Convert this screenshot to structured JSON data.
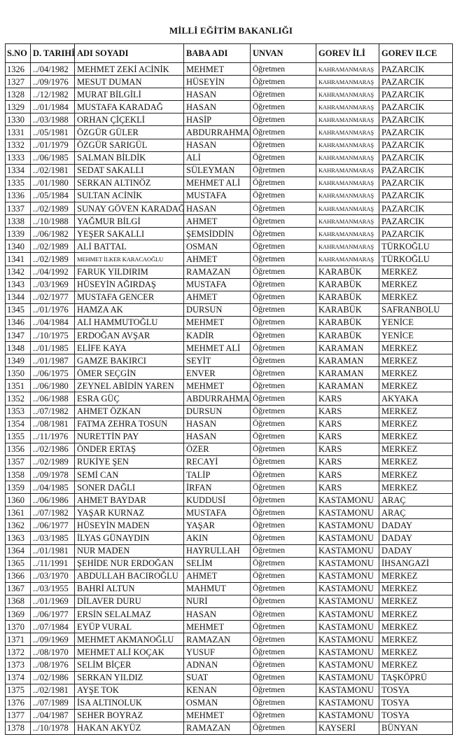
{
  "title": "MİLLİ EĞİTİM BAKANLIĞI",
  "columns": [
    "S.NO",
    "D. TARIHİ",
    "ADI SOYADI",
    "BABA ADI",
    "UNVAN",
    "GOREV İLİ",
    "GOREV ILCE"
  ],
  "rows": [
    [
      "1326",
      "../04/1982",
      "MEHMET ZEKİ ACİNİK",
      "MEHMET",
      "Öğretmen",
      "KAHRAMANMARAŞ",
      "PAZARCIK"
    ],
    [
      "1327",
      "../09/1976",
      "MESUT DUMAN",
      "HÜSEYİN",
      "Öğretmen",
      "KAHRAMANMARAŞ",
      "PAZARCIK"
    ],
    [
      "1328",
      "../12/1982",
      "MURAT BİLGİLİ",
      "HASAN",
      "Öğretmen",
      "KAHRAMANMARAŞ",
      "PAZARCIK"
    ],
    [
      "1329",
      "../01/1984",
      "MUSTAFA KARADAĞ",
      "HASAN",
      "Öğretmen",
      "KAHRAMANMARAŞ",
      "PAZARCIK"
    ],
    [
      "1330",
      "../03/1988",
      "ORHAN ÇİÇEKLİ",
      "HASİP",
      "Öğretmen",
      "KAHRAMANMARAŞ",
      "PAZARCIK"
    ],
    [
      "1331",
      "../05/1981",
      "ÖZGÜR GÜLER",
      "ABDURRAHMAN",
      "Öğretmen",
      "KAHRAMANMARAŞ",
      "PAZARCIK"
    ],
    [
      "1332",
      "../01/1979",
      "ÖZGÜR SARIGÜL",
      "HASAN",
      "Öğretmen",
      "KAHRAMANMARAŞ",
      "PAZARCIK"
    ],
    [
      "1333",
      "../06/1985",
      "SALMAN BİLDİK",
      "ALİ",
      "Öğretmen",
      "KAHRAMANMARAŞ",
      "PAZARCIK"
    ],
    [
      "1334",
      "../02/1981",
      "SEDAT SAKALLI",
      "SÜLEYMAN",
      "Öğretmen",
      "KAHRAMANMARAŞ",
      "PAZARCIK"
    ],
    [
      "1335",
      "../01/1980",
      "SERKAN ALTINÖZ",
      "MEHMET ALİ",
      "Öğretmen",
      "KAHRAMANMARAŞ",
      "PAZARCIK"
    ],
    [
      "1336",
      "../05/1984",
      "SULTAN ACİNİK",
      "MUSTAFA",
      "Öğretmen",
      "KAHRAMANMARAŞ",
      "PAZARCIK"
    ],
    [
      "1337",
      "../02/1989",
      "SUNAY GÖVEN KARADAĞ",
      "HASAN",
      "Öğretmen",
      "KAHRAMANMARAŞ",
      "PAZARCIK"
    ],
    [
      "1338",
      "../10/1988",
      "YAĞMUR BİLGİ",
      "AHMET",
      "Öğretmen",
      "KAHRAMANMARAŞ",
      "PAZARCIK"
    ],
    [
      "1339",
      "../06/1982",
      "YEŞER SAKALLI",
      "ŞEMSİDDİN",
      "Öğretmen",
      "KAHRAMANMARAŞ",
      "PAZARCIK"
    ],
    [
      "1340",
      "../02/1989",
      "ALİ BATTAL",
      "OSMAN",
      "Öğretmen",
      "KAHRAMANMARAŞ",
      "TÜRKOĞLU"
    ],
    [
      "1341",
      "../02/1989",
      "MEHMET İLKER KARACAOĞLU",
      "AHMET",
      "Öğretmen",
      "KAHRAMANMARAŞ",
      "TÜRKOĞLU"
    ],
    [
      "1342",
      "../04/1992",
      "FARUK YILDIRIM",
      "RAMAZAN",
      "Öğretmen",
      "KARABÜK",
      "MERKEZ"
    ],
    [
      "1343",
      "../03/1969",
      "HÜSEYİN AĞIRDAŞ",
      "MUSTAFA",
      "Öğretmen",
      "KARABÜK",
      "MERKEZ"
    ],
    [
      "1344",
      "../02/1977",
      "MUSTAFA GENCER",
      "AHMET",
      "Öğretmen",
      "KARABÜK",
      "MERKEZ"
    ],
    [
      "1345",
      "../01/1976",
      "HAMZA AK",
      "DURSUN",
      "Öğretmen",
      "KARABÜK",
      "SAFRANBOLU"
    ],
    [
      "1346",
      "../04/1984",
      "ALİ HAMMUTOĞLU",
      "MEHMET",
      "Öğretmen",
      "KARABÜK",
      "YENİCE"
    ],
    [
      "1347",
      "../10/1975",
      "ERDOĞAN AVŞAR",
      "KADİR",
      "Öğretmen",
      "KARABÜK",
      "YENİCE"
    ],
    [
      "1348",
      "../01/1985",
      "ELİFE KAYA",
      "MEHMET ALİ",
      "Öğretmen",
      "KARAMAN",
      "MERKEZ"
    ],
    [
      "1349",
      "../01/1987",
      "GAMZE BAKIRCI",
      "SEYİT",
      "Öğretmen",
      "KARAMAN",
      "MERKEZ"
    ],
    [
      "1350",
      "../06/1975",
      "ÖMER SEÇGİN",
      "ENVER",
      "Öğretmen",
      "KARAMAN",
      "MERKEZ"
    ],
    [
      "1351",
      "../06/1980",
      "ZEYNEL ABİDİN YAREN",
      "MEHMET",
      "Öğretmen",
      "KARAMAN",
      "MERKEZ"
    ],
    [
      "1352",
      "../06/1988",
      "ESRA GÜÇ",
      "ABDURRAHMAN",
      "Öğretmen",
      "KARS",
      "AKYAKA"
    ],
    [
      "1353",
      "../07/1982",
      "AHMET ÖZKAN",
      "DURSUN",
      "Öğretmen",
      "KARS",
      "MERKEZ"
    ],
    [
      "1354",
      "../08/1981",
      "FATMA ZEHRA TOSUN",
      "HASAN",
      "Öğretmen",
      "KARS",
      "MERKEZ"
    ],
    [
      "1355",
      "../11/1976",
      "NURETTİN PAY",
      "HASAN",
      "Öğretmen",
      "KARS",
      "MERKEZ"
    ],
    [
      "1356",
      "../02/1986",
      "ÖNDER ERTAŞ",
      "ÖZER",
      "Öğretmen",
      "KARS",
      "MERKEZ"
    ],
    [
      "1357",
      "../02/1989",
      "RUKİYE ŞEN",
      "RECAYİ",
      "Öğretmen",
      "KARS",
      "MERKEZ"
    ],
    [
      "1358",
      "../09/1978",
      "SEMİ CAN",
      "TALİP",
      "Öğretmen",
      "KARS",
      "MERKEZ"
    ],
    [
      "1359",
      "../04/1985",
      "SONER DAĞLI",
      "İRFAN",
      "Öğretmen",
      "KARS",
      "MERKEZ"
    ],
    [
      "1360",
      "../06/1986",
      "AHMET BAYDAR",
      "KUDDUSİ",
      "Öğretmen",
      "KASTAMONU",
      "ARAÇ"
    ],
    [
      "1361",
      "../07/1982",
      "YAŞAR KURNAZ",
      "MUSTAFA",
      "Öğretmen",
      "KASTAMONU",
      "ARAÇ"
    ],
    [
      "1362",
      "../06/1977",
      "HÜSEYİN MADEN",
      "YAŞAR",
      "Öğretmen",
      "KASTAMONU",
      "DADAY"
    ],
    [
      "1363",
      "../03/1985",
      "İLYAS GÜNAYDIN",
      "AKIN",
      "Öğretmen",
      "KASTAMONU",
      "DADAY"
    ],
    [
      "1364",
      "../01/1981",
      "NUR MADEN",
      "HAYRULLAH",
      "Öğretmen",
      "KASTAMONU",
      "DADAY"
    ],
    [
      "1365",
      "../11/1991",
      "ŞEHİDE NUR ERDOĞAN",
      "SELİM",
      "Öğretmen",
      "KASTAMONU",
      "İHSANGAZİ"
    ],
    [
      "1366",
      "../03/1970",
      "ABDULLAH BACIROĞLU",
      "AHMET",
      "Öğretmen",
      "KASTAMONU",
      "MERKEZ"
    ],
    [
      "1367",
      "../03/1955",
      "BAHRİ ALTUN",
      "MAHMUT",
      "Öğretmen",
      "KASTAMONU",
      "MERKEZ"
    ],
    [
      "1368",
      "../01/1969",
      "DİLAVER DURU",
      "NURİ",
      "Öğretmen",
      "KASTAMONU",
      "MERKEZ"
    ],
    [
      "1369",
      "../06/1977",
      "ERSİN SELALMAZ",
      "HASAN",
      "Öğretmen",
      "KASTAMONU",
      "MERKEZ"
    ],
    [
      "1370",
      "../07/1984",
      "EYÜP VURAL",
      "MEHMET",
      "Öğretmen",
      "KASTAMONU",
      "MERKEZ"
    ],
    [
      "1371",
      "../09/1969",
      "MEHMET AKMANOĞLU",
      "RAMAZAN",
      "Öğretmen",
      "KASTAMONU",
      "MERKEZ"
    ],
    [
      "1372",
      "../08/1970",
      "MEHMET ALİ KOÇAK",
      "YUSUF",
      "Öğretmen",
      "KASTAMONU",
      "MERKEZ"
    ],
    [
      "1373",
      "../08/1976",
      "SELİM BİÇER",
      "ADNAN",
      "Öğretmen",
      "KASTAMONU",
      "MERKEZ"
    ],
    [
      "1374",
      "../02/1986",
      "SERKAN YILDIZ",
      "SUAT",
      "Öğretmen",
      "KASTAMONU",
      "TAŞKÖPRÜ"
    ],
    [
      "1375",
      "../02/1981",
      "AYŞE TOK",
      "KENAN",
      "Öğretmen",
      "KASTAMONU",
      "TOSYA"
    ],
    [
      "1376",
      "../07/1989",
      "İSA ALTINOLUK",
      "OSMAN",
      "Öğretmen",
      "KASTAMONU",
      "TOSYA"
    ],
    [
      "1377",
      "../04/1987",
      "SEHER BOYRAZ",
      "MEHMET",
      "Öğretmen",
      "KASTAMONU",
      "TOSYA"
    ],
    [
      "1378",
      "../10/1978",
      "HAKAN AKYÜZ",
      "RAMAZAN",
      "Öğretmen",
      "KAYSERİ",
      "BÜNYAN"
    ]
  ]
}
